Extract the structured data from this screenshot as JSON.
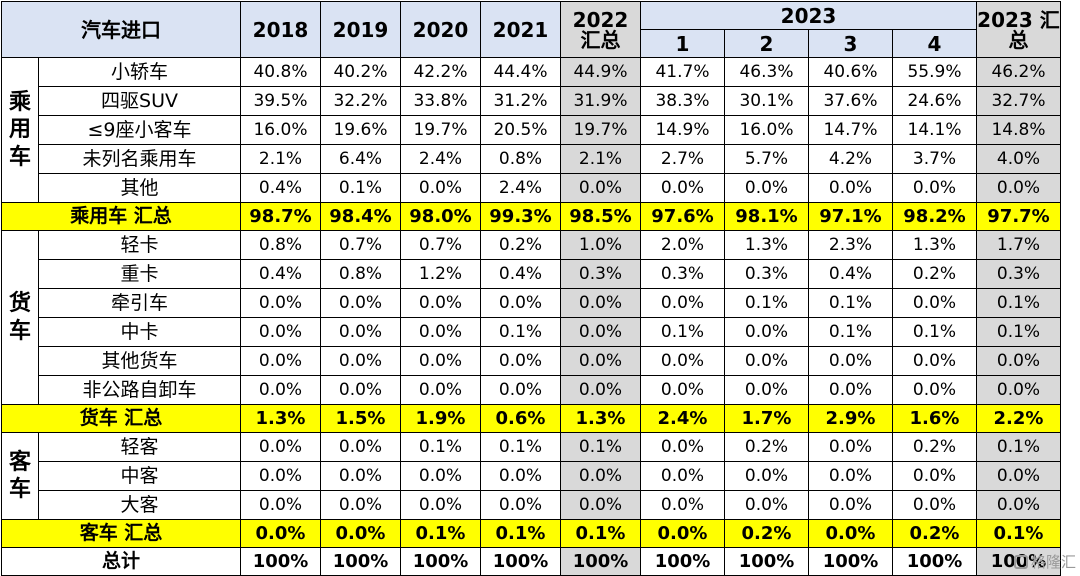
{
  "chart_data": {
    "type": "table",
    "title": "汽车进口",
    "year_2023_label": "2023",
    "columns": [
      "2018",
      "2019",
      "2020",
      "2021",
      "2022\n汇总",
      "1",
      "2",
      "3",
      "4",
      "2023 汇\n总"
    ],
    "groups": [
      {
        "name": "乘\n用\n车",
        "rows": [
          {
            "name": "小轿车",
            "values": [
              "40.8%",
              "40.2%",
              "42.2%",
              "44.4%",
              "44.9%",
              "41.7%",
              "46.3%",
              "40.6%",
              "55.9%",
              "46.2%"
            ]
          },
          {
            "name": "四驱SUV",
            "values": [
              "39.5%",
              "32.2%",
              "33.8%",
              "31.2%",
              "31.9%",
              "38.3%",
              "30.1%",
              "37.6%",
              "24.6%",
              "32.7%"
            ]
          },
          {
            "name": "≤9座小客车",
            "values": [
              "16.0%",
              "19.6%",
              "19.7%",
              "20.5%",
              "19.7%",
              "14.9%",
              "16.0%",
              "14.7%",
              "14.1%",
              "14.8%"
            ]
          },
          {
            "name": "未列名乘用车",
            "values": [
              "2.1%",
              "6.4%",
              "2.4%",
              "0.8%",
              "2.1%",
              "2.7%",
              "5.7%",
              "4.2%",
              "3.7%",
              "4.0%"
            ]
          },
          {
            "name": "其他",
            "values": [
              "0.4%",
              "0.1%",
              "0.0%",
              "2.4%",
              "0.0%",
              "0.0%",
              "0.0%",
              "0.0%",
              "0.0%",
              "0.0%"
            ]
          }
        ],
        "subtotal": {
          "name": "乘用车 汇总",
          "values": [
            "98.7%",
            "98.4%",
            "98.0%",
            "99.3%",
            "98.5%",
            "97.6%",
            "98.1%",
            "97.1%",
            "98.2%",
            "97.7%"
          ]
        }
      },
      {
        "name": "货\n车",
        "rows": [
          {
            "name": "轻卡",
            "values": [
              "0.8%",
              "0.7%",
              "0.7%",
              "0.2%",
              "1.0%",
              "2.0%",
              "1.3%",
              "2.3%",
              "1.3%",
              "1.7%"
            ]
          },
          {
            "name": "重卡",
            "values": [
              "0.4%",
              "0.8%",
              "1.2%",
              "0.4%",
              "0.3%",
              "0.3%",
              "0.3%",
              "0.4%",
              "0.2%",
              "0.3%"
            ]
          },
          {
            "name": "牵引车",
            "values": [
              "0.0%",
              "0.0%",
              "0.0%",
              "0.0%",
              "0.0%",
              "0.0%",
              "0.1%",
              "0.1%",
              "0.0%",
              "0.1%"
            ]
          },
          {
            "name": "中卡",
            "values": [
              "0.0%",
              "0.0%",
              "0.0%",
              "0.1%",
              "0.0%",
              "0.1%",
              "0.0%",
              "0.1%",
              "0.1%",
              "0.1%"
            ]
          },
          {
            "name": "其他货车",
            "values": [
              "0.0%",
              "0.0%",
              "0.0%",
              "0.0%",
              "0.0%",
              "0.0%",
              "0.0%",
              "0.0%",
              "0.0%",
              "0.0%"
            ]
          },
          {
            "name": "非公路自卸车",
            "values": [
              "0.0%",
              "0.0%",
              "0.0%",
              "0.0%",
              "0.0%",
              "0.0%",
              "0.0%",
              "0.0%",
              "0.0%",
              "0.0%"
            ]
          }
        ],
        "subtotal": {
          "name": "货车 汇总",
          "values": [
            "1.3%",
            "1.5%",
            "1.9%",
            "0.6%",
            "1.3%",
            "2.4%",
            "1.7%",
            "2.9%",
            "1.6%",
            "2.2%"
          ]
        }
      },
      {
        "name": "客\n车",
        "rows": [
          {
            "name": "轻客",
            "values": [
              "0.0%",
              "0.0%",
              "0.1%",
              "0.1%",
              "0.1%",
              "0.0%",
              "0.2%",
              "0.0%",
              "0.2%",
              "0.1%"
            ]
          },
          {
            "name": "中客",
            "values": [
              "0.0%",
              "0.0%",
              "0.0%",
              "0.0%",
              "0.0%",
              "0.0%",
              "0.0%",
              "0.0%",
              "0.0%",
              "0.0%"
            ]
          },
          {
            "name": "大客",
            "values": [
              "0.0%",
              "0.0%",
              "0.0%",
              "0.0%",
              "0.0%",
              "0.0%",
              "0.0%",
              "0.0%",
              "0.0%",
              "0.0%"
            ]
          }
        ],
        "subtotal": {
          "name": "客车 汇总",
          "values": [
            "0.0%",
            "0.0%",
            "0.1%",
            "0.1%",
            "0.1%",
            "0.0%",
            "0.2%",
            "0.0%",
            "0.2%",
            "0.1%"
          ]
        }
      }
    ],
    "total": {
      "name": "总计",
      "values": [
        "100%",
        "100%",
        "100%",
        "100%",
        "100%",
        "100%",
        "100%",
        "100%",
        "100%",
        "100%"
      ]
    }
  },
  "watermark": "格隆汇",
  "colors": {
    "header_bg": "#dae3f3",
    "summary_col_bg": "#d9d9d9",
    "subtotal_bg": "#ffff00",
    "border": "#000000"
  }
}
